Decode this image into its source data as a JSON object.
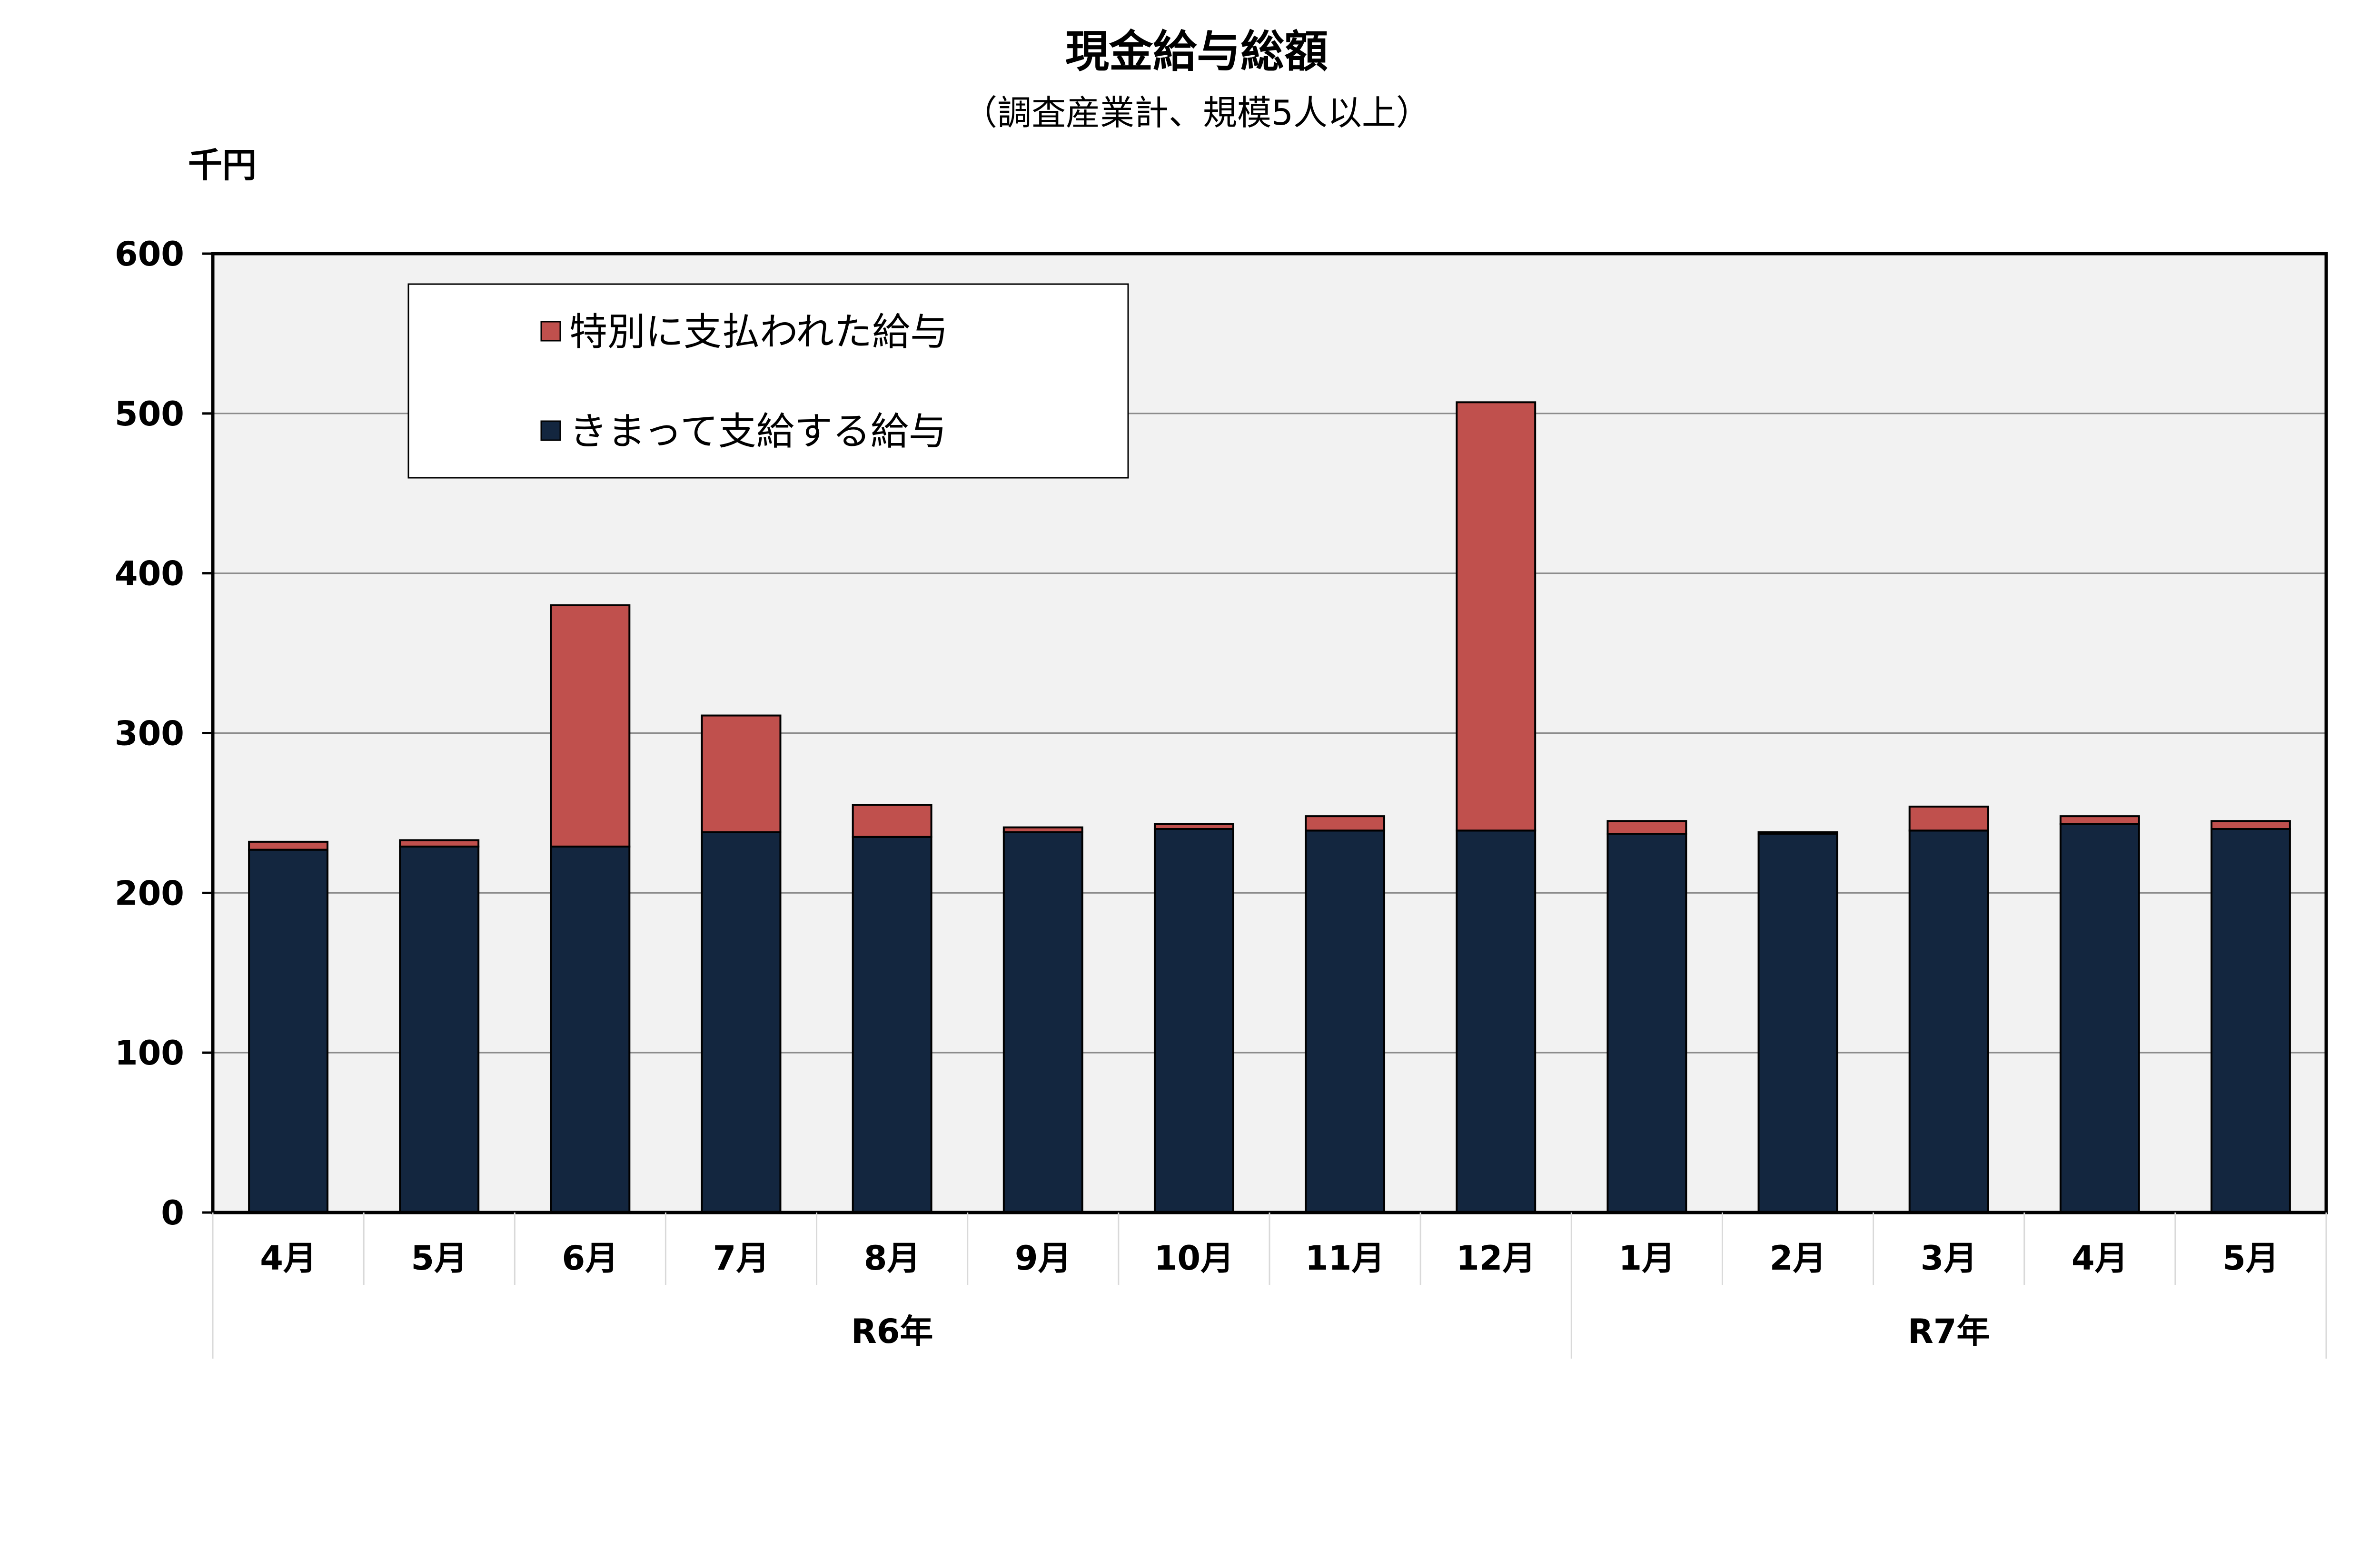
{
  "chart_data": {
    "type": "bar",
    "stacked": true,
    "title": "現金給与総額",
    "subtitle": "（調査産業計、規模5人以上）",
    "unit_label": "千円",
    "ylim": [
      0,
      600
    ],
    "yticks": [
      0,
      100,
      200,
      300,
      400,
      500,
      600
    ],
    "categories": [
      "4月",
      "5月",
      "6月",
      "7月",
      "8月",
      "9月",
      "10月",
      "11月",
      "12月",
      "1月",
      "2月",
      "3月",
      "4月",
      "5月"
    ],
    "year_groups": [
      {
        "label": "R6年",
        "count": 9
      },
      {
        "label": "R7年",
        "count": 5
      }
    ],
    "series": [
      {
        "name": "きまって支給する給与",
        "color": "#13263f",
        "values": [
          227,
          229,
          229,
          238,
          235,
          238,
          240,
          239,
          239,
          237,
          237,
          239,
          243,
          240
        ]
      },
      {
        "name": "特別に支払われた給与",
        "color": "#c0504d",
        "values": [
          5,
          4,
          151,
          73,
          20,
          3,
          3,
          9,
          268,
          8,
          1,
          15,
          5,
          5
        ]
      }
    ],
    "legend_order": [
      "特別に支払われた給与",
      "きまって支給する給与"
    ],
    "legend_position": "top-left",
    "grid": true,
    "plot_background": "#f2f2f2"
  }
}
